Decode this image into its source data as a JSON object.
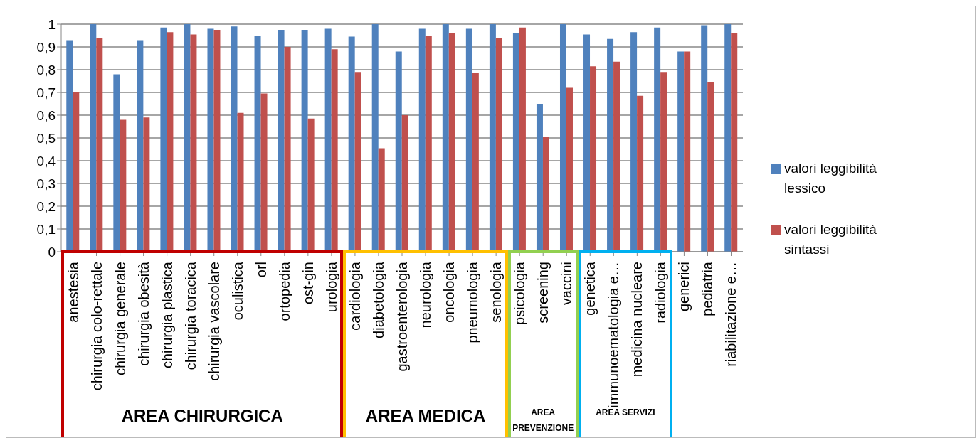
{
  "chart_data": {
    "type": "bar",
    "categories": [
      "anestesia",
      "chirurgia colo-rettale",
      "chirurgia generale",
      "chirurgia obesità",
      "chirurgia plastica",
      "chirurgia toracica",
      "chirurgia vascolare",
      "oculistica",
      "orl",
      "ortopedia",
      "ost-gin",
      "urologia",
      "cardiologia",
      "diabetologia",
      "gastroenterologia",
      "neurologia",
      "oncologia",
      "pneumologia",
      "senologia",
      "psicologia",
      "screening",
      "vaccini",
      "genetica",
      "immunoematologia e…",
      "medicina nucleare",
      "radiologia",
      "generici",
      "pediatria",
      "riabilitazione e…"
    ],
    "series": [
      {
        "name": "valori leggibilità lessico",
        "color": "#4f81bd",
        "values": [
          0.93,
          1.0,
          0.78,
          0.93,
          0.985,
          1.0,
          0.98,
          0.99,
          0.95,
          0.975,
          0.975,
          0.98,
          0.945,
          1.0,
          0.88,
          0.98,
          1.0,
          0.98,
          1.0,
          0.96,
          0.65,
          1.0,
          0.955,
          0.935,
          0.965,
          0.985,
          0.88,
          0.995,
          1.0
        ]
      },
      {
        "name": "valori leggibilità sintassi",
        "color": "#c0504d",
        "values": [
          0.7,
          0.94,
          0.58,
          0.59,
          0.965,
          0.955,
          0.975,
          0.61,
          0.695,
          0.9,
          0.585,
          0.89,
          0.79,
          0.455,
          0.6,
          0.95,
          0.96,
          0.785,
          0.94,
          0.985,
          0.505,
          0.72,
          0.815,
          0.835,
          0.685,
          0.79,
          0.88,
          0.745,
          0.96
        ]
      }
    ],
    "ylim": [
      0,
      1
    ],
    "yticks": [
      0,
      {
        "value": 0.1,
        "label": "0,1"
      },
      {
        "value": 0.2,
        "label": "0,2"
      },
      {
        "value": 0.3,
        "label": "0,3"
      },
      {
        "value": 0.4,
        "label": "0,4"
      },
      {
        "value": 0.5,
        "label": "0,5"
      },
      {
        "value": 0.6,
        "label": "0,6"
      },
      {
        "value": 0.7,
        "label": "0,7"
      },
      {
        "value": 0.8,
        "label": "0,8"
      },
      {
        "value": 0.9,
        "label": "0,9"
      },
      1
    ],
    "grid": "y",
    "legend": "right",
    "annotations": [
      "AREA CHIRURGICA",
      "AREA MEDICA",
      "AREA PREVENZIONE",
      "AREA SERVIZI"
    ]
  }
}
